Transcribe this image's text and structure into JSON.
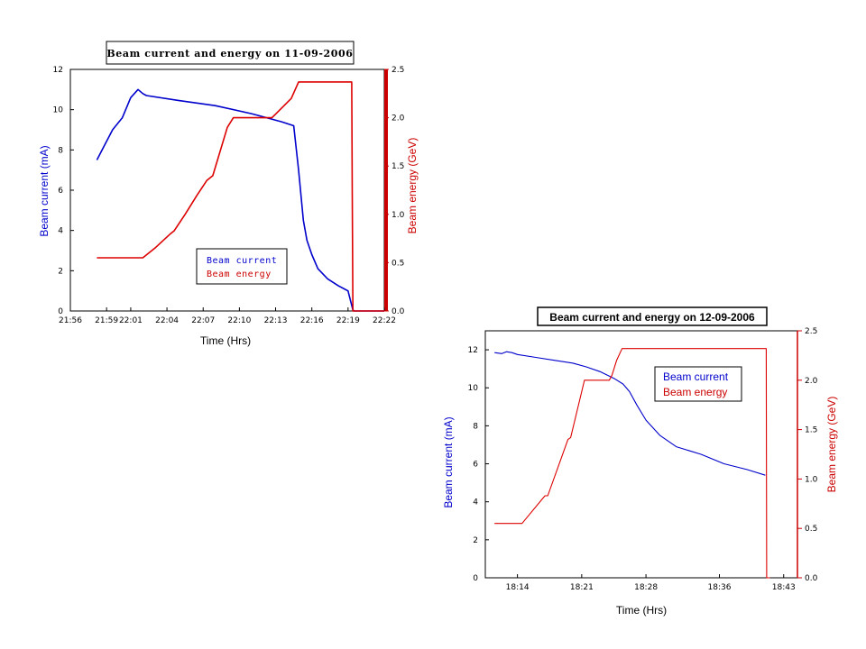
{
  "colors": {
    "current": "#0000cc",
    "energy": "#dd0000",
    "axis_energy": "#cc0000"
  },
  "chart_data": [
    {
      "type": "line",
      "title": "Beam current and energy on 11-09-2006",
      "xlabel": "Time (Hrs)",
      "ylabel": "Beam current (mA)",
      "y2label": "Beam energy (GeV)",
      "xlim": [
        1316,
        1342
      ],
      "ylim": [
        0,
        12
      ],
      "y2lim": [
        0,
        2.5
      ],
      "x_ticks": [
        1316,
        1319,
        1321,
        1324,
        1327,
        1330,
        1333,
        1336,
        1339,
        1342
      ],
      "x_tick_labels": [
        "21:56",
        "21:59",
        "22:01",
        "22:04",
        "22:07",
        "22:10",
        "22:13",
        "22:16",
        "22:19",
        "22:22"
      ],
      "y_ticks": [
        0,
        2,
        4,
        6,
        8,
        10,
        12
      ],
      "y_tick_labels": [
        "0",
        "2",
        "4",
        "6",
        "8",
        "10",
        "12"
      ],
      "y2_ticks": [
        0,
        0.5,
        1.0,
        1.5,
        2.0,
        2.5
      ],
      "y2_tick_labels": [
        "0.0",
        "0.5",
        "1.0",
        "1.5",
        "2.0",
        "2.5"
      ],
      "legend_position": "bottom-center",
      "series": [
        {
          "name": "Beam current",
          "axis": "left",
          "x": [
            1318.2,
            1318.8,
            1319.5,
            1320.3,
            1321.0,
            1321.6,
            1322.0,
            1322.3,
            1325,
            1328,
            1331,
            1333.5,
            1334.5,
            1334.9,
            1335.3,
            1335.6,
            1336.0,
            1336.5,
            1337.3,
            1338.2,
            1339.0,
            1339.4,
            1339.5,
            1342.0
          ],
          "y": [
            7.5,
            8.2,
            9.0,
            9.6,
            10.6,
            11.0,
            10.8,
            10.7,
            10.45,
            10.2,
            9.8,
            9.4,
            9.2,
            7.0,
            4.5,
            3.5,
            2.8,
            2.1,
            1.6,
            1.25,
            1.0,
            0.05,
            0.0,
            0.0
          ]
        },
        {
          "name": "Beam energy",
          "axis": "right",
          "x": [
            1318.2,
            1322.0,
            1323.0,
            1324.3,
            1324.6,
            1325.5,
            1326.5,
            1327.3,
            1327.8,
            1329.0,
            1329.5,
            1332.4,
            1332.7,
            1334.3,
            1334.9,
            1339.3,
            1339.35,
            1339.4,
            1342.0
          ],
          "y": [
            0.55,
            0.55,
            0.65,
            0.8,
            0.83,
            1.0,
            1.2,
            1.35,
            1.4,
            1.9,
            2.0,
            2.0,
            2.0,
            2.2,
            2.37,
            2.37,
            1.2,
            0.0,
            0.0
          ]
        }
      ],
      "legend_entries": [
        "Beam current",
        "Beam energy"
      ]
    },
    {
      "type": "line",
      "title": "Beam current and energy on 12-09-2006",
      "xlabel": "Time (Hrs)",
      "ylabel": "Beam current (mA)",
      "y2label": "Beam energy (GeV)",
      "xlim": [
        1090.5,
        1124.5
      ],
      "ylim": [
        0,
        13
      ],
      "y2lim": [
        0,
        2.5
      ],
      "x_ticks": [
        1094,
        1101,
        1108,
        1116,
        1123
      ],
      "x_tick_labels": [
        "18:14",
        "18:21",
        "18:28",
        "18:36",
        "18:43"
      ],
      "y_ticks": [
        0,
        2,
        4,
        6,
        8,
        10,
        12
      ],
      "y_tick_labels": [
        "0",
        "2",
        "4",
        "6",
        "8",
        "10",
        "12"
      ],
      "y2_ticks": [
        0,
        0.5,
        1.0,
        1.5,
        2.0,
        2.5
      ],
      "y2_tick_labels": [
        "0.0",
        "0.5",
        "1.0",
        "1.5",
        "2.0",
        "2.5"
      ],
      "legend_position": "top-right",
      "series": [
        {
          "name": "Beam current",
          "axis": "left",
          "x": [
            1091.5,
            1092.3,
            1092.8,
            1093.4,
            1094,
            1096,
            1098,
            1100,
            1101.5,
            1103,
            1104.5,
            1105.5,
            1106.2,
            1107.0,
            1108.0,
            1109.5,
            1111.3,
            1114,
            1116.5,
            1119,
            1121.0
          ],
          "y": [
            11.85,
            11.8,
            11.9,
            11.85,
            11.75,
            11.6,
            11.45,
            11.3,
            11.1,
            10.85,
            10.5,
            10.2,
            9.8,
            9.1,
            8.3,
            7.5,
            6.9,
            6.5,
            6.0,
            5.7,
            5.4
          ]
        },
        {
          "name": "Beam energy",
          "axis": "right",
          "x": [
            1091.5,
            1094.5,
            1097.0,
            1097.3,
            1099.5,
            1099.8,
            1101.3,
            1104.0,
            1104.3,
            1104.8,
            1105.4,
            1121.1,
            1121.15,
            1121.5
          ],
          "y": [
            0.55,
            0.55,
            0.83,
            0.83,
            1.4,
            1.42,
            2.0,
            2.0,
            2.05,
            2.2,
            2.32,
            2.32,
            0.0,
            0.0
          ]
        }
      ],
      "legend_entries": [
        "Beam current",
        "Beam energy"
      ]
    }
  ]
}
